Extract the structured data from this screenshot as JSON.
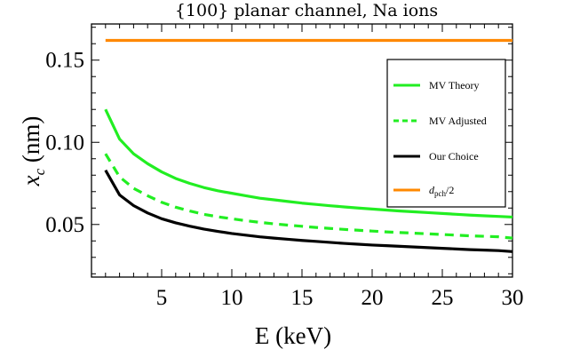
{
  "chart_data": {
    "type": "line",
    "title": "{100} planar channel, Na ions",
    "xlabel": "E (keV)",
    "ylabel_main": "x",
    "ylabel_sub": "c",
    "ylabel_unit": " (nm)",
    "xlim": [
      0,
      30
    ],
    "ylim": [
      0.018,
      0.172
    ],
    "xticks": [
      5,
      10,
      15,
      20,
      25,
      30
    ],
    "xtick_labels": [
      "5",
      "10",
      "15",
      "20",
      "25",
      "30"
    ],
    "yticks": [
      0.05,
      0.1,
      0.15
    ],
    "ytick_labels": [
      "0.05",
      "0.10",
      "0.15"
    ],
    "grid": false,
    "legend_position": "right",
    "x": [
      1,
      2,
      3,
      4,
      5,
      6,
      7,
      8,
      9,
      10,
      11,
      12,
      13,
      14,
      15,
      16,
      17,
      18,
      19,
      20,
      21,
      22,
      23,
      24,
      25,
      26,
      27,
      28,
      29,
      30
    ],
    "series": [
      {
        "name": "MV Theory",
        "color": "#22ee22",
        "dash": "solid",
        "values": [
          0.12,
          0.102,
          0.093,
          0.087,
          0.082,
          0.078,
          0.075,
          0.0725,
          0.0705,
          0.069,
          0.0675,
          0.066,
          0.065,
          0.064,
          0.063,
          0.0622,
          0.0614,
          0.0607,
          0.06,
          0.0594,
          0.0588,
          0.0582,
          0.0577,
          0.0572,
          0.0567,
          0.0562,
          0.0557,
          0.0553,
          0.0549,
          0.0545
        ]
      },
      {
        "name": "MV Adjusted",
        "color": "#22ee22",
        "dash": "dashed",
        "values": [
          0.093,
          0.079,
          0.072,
          0.0675,
          0.0635,
          0.0605,
          0.0582,
          0.0562,
          0.0547,
          0.0535,
          0.0523,
          0.0513,
          0.0504,
          0.0496,
          0.0489,
          0.0482,
          0.0476,
          0.047,
          0.0465,
          0.046,
          0.0455,
          0.0451,
          0.0447,
          0.0443,
          0.0439,
          0.0435,
          0.0431,
          0.0428,
          0.0425,
          0.0417
        ]
      },
      {
        "name": "Our Choice",
        "color": "#000000",
        "dash": "solid",
        "values": [
          0.083,
          0.068,
          0.0615,
          0.057,
          0.0535,
          0.051,
          0.049,
          0.0472,
          0.0458,
          0.0445,
          0.0435,
          0.0425,
          0.0417,
          0.041,
          0.0403,
          0.0397,
          0.0391,
          0.0385,
          0.038,
          0.0375,
          0.0371,
          0.0367,
          0.0363,
          0.0359,
          0.0355,
          0.0351,
          0.0347,
          0.0344,
          0.0341,
          0.0335
        ]
      },
      {
        "name": "d_pch/2",
        "color": "#ff8800",
        "dash": "solid",
        "values": [
          0.162,
          0.162,
          0.162,
          0.162,
          0.162,
          0.162,
          0.162,
          0.162,
          0.162,
          0.162,
          0.162,
          0.162,
          0.162,
          0.162,
          0.162,
          0.162,
          0.162,
          0.162,
          0.162,
          0.162,
          0.162,
          0.162,
          0.162,
          0.162,
          0.162,
          0.162,
          0.162,
          0.162,
          0.162,
          0.162
        ]
      }
    ],
    "legend": [
      {
        "label": "MV Theory",
        "color": "#22ee22",
        "dash": "solid"
      },
      {
        "label": "MV Adjusted",
        "color": "#22ee22",
        "dash": "dashed"
      },
      {
        "label": "Our Choice",
        "color": "#000000",
        "dash": "solid"
      },
      {
        "label_main": "d",
        "label_sub": "pch",
        "label_tail": "/2",
        "color": "#ff8800",
        "dash": "solid"
      }
    ]
  }
}
